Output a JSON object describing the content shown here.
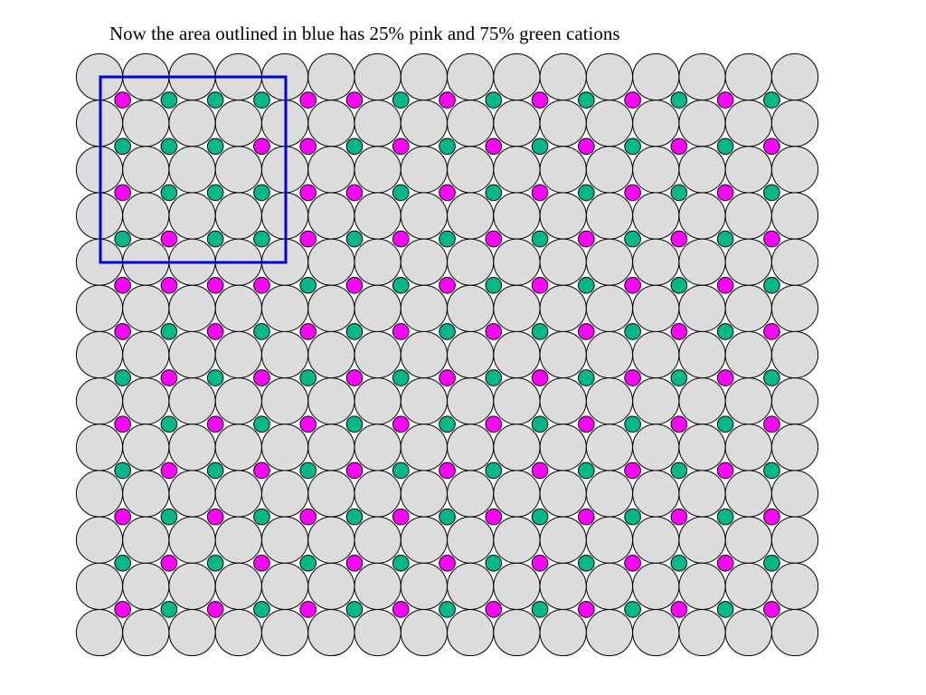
{
  "header": {
    "title": "Now the area outlined in blue has 25% pink and 75% green cations"
  }
}
